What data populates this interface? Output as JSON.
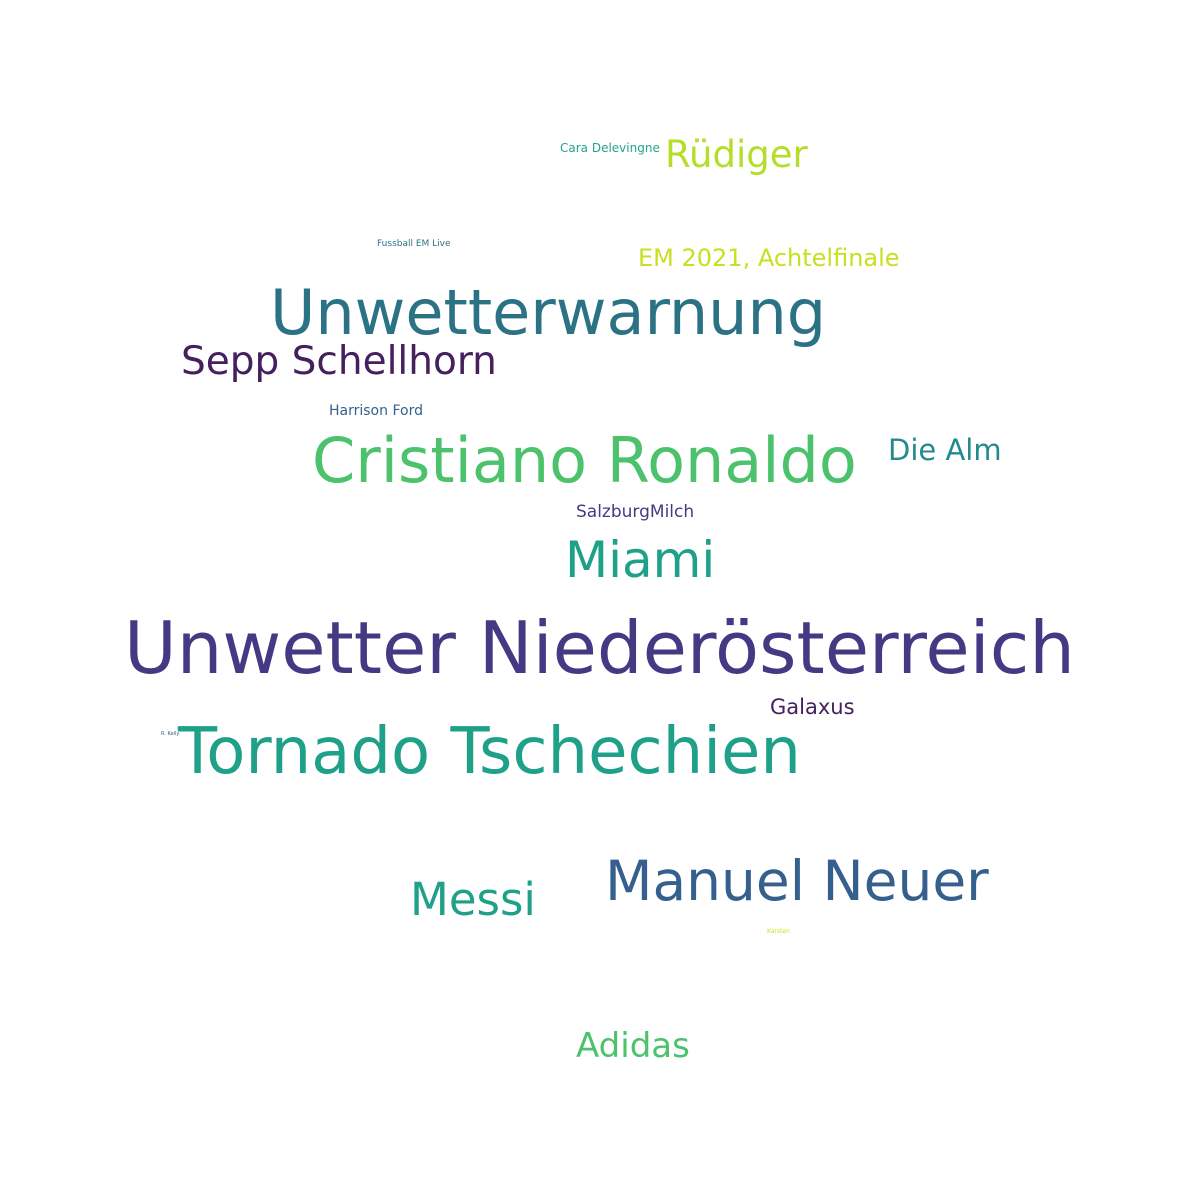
{
  "word_cloud": {
    "words": [
      {
        "id": "cara-delevingne",
        "text": "Cara Delevingne",
        "color": "#26a38a"
      },
      {
        "id": "ruediger",
        "text": "Rüdiger",
        "color": "#b5de2b"
      },
      {
        "id": "fussball-em-live",
        "text": "Fussball EM Live",
        "color": "#2c7285"
      },
      {
        "id": "em-2021-achtelfinale",
        "text": "EM 2021, Achtelfinale",
        "color": "#c8e020"
      },
      {
        "id": "unwetterwarnung",
        "text": "Unwetterwarnung",
        "color": "#2c7285"
      },
      {
        "id": "sepp-schellhorn",
        "text": "Sepp Schellhorn",
        "color": "#45205e"
      },
      {
        "id": "harrison-ford",
        "text": "Harrison Ford",
        "color": "#355f8d"
      },
      {
        "id": "cristiano-ronaldo",
        "text": "Cristiano Ronaldo",
        "color": "#4cc26c"
      },
      {
        "id": "die-alm",
        "text": "Die Alm",
        "color": "#238a8d"
      },
      {
        "id": "salzburgmilch",
        "text": "SalzburgMilch",
        "color": "#443a83"
      },
      {
        "id": "miami",
        "text": "Miami",
        "color": "#1fa088"
      },
      {
        "id": "unwetter-niederoesterreich",
        "text": "Unwetter Niederösterreich",
        "color": "#443a83"
      },
      {
        "id": "galaxus",
        "text": "Galaxus",
        "color": "#45205e"
      },
      {
        "id": "r-kelly",
        "text": "R. Kelly",
        "color": "#355f8d"
      },
      {
        "id": "tornado-tschechien",
        "text": "Tornado Tschechien",
        "color": "#1fa088"
      },
      {
        "id": "messi",
        "text": "Messi",
        "color": "#1fa088"
      },
      {
        "id": "manuel-neuer",
        "text": "Manuel Neuer",
        "color": "#355f8d"
      },
      {
        "id": "karsten",
        "text": "Karsten",
        "color": "#c8e020"
      },
      {
        "id": "adidas",
        "text": "Adidas",
        "color": "#4cc26c"
      }
    ]
  }
}
